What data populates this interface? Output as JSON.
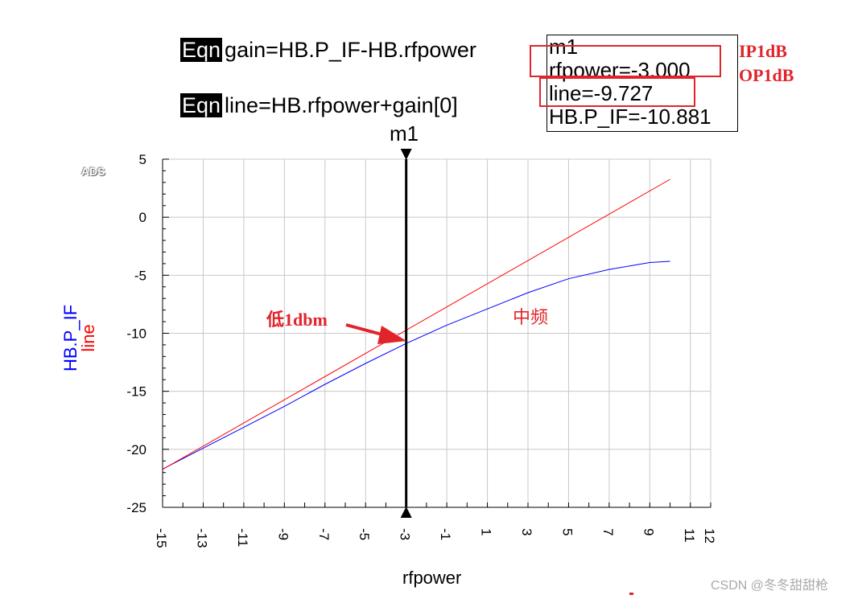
{
  "equations": [
    {
      "tag": "Eqn",
      "text": "gain=HB.P_IF-HB.rfpower"
    },
    {
      "tag": "Eqn",
      "text": "line=HB.rfpower+gain[0]"
    }
  ],
  "marker": {
    "name": "m1",
    "lines": [
      "m1",
      "rfpower=-3.000",
      "line=-9.727",
      "HB.P_IF=-10.881"
    ]
  },
  "annotations": {
    "ip1db": "IP1dB",
    "op1db": "OP1dB",
    "low": "低1dbm",
    "mid": "中频"
  },
  "ads_label": "ADS",
  "watermark": "CSDN @冬冬甜甜枪",
  "colors": {
    "blue": "#0000ff",
    "red": "#ff0000",
    "annotation": "#e0242b",
    "grid": "#c8c8c8"
  },
  "chart_data": {
    "type": "line",
    "title": "",
    "xlabel": "rfpower",
    "ylabel": [
      "HB.P_IF",
      "line"
    ],
    "xlim": [
      -15,
      12
    ],
    "ylim": [
      -25,
      5
    ],
    "xticks": [
      -15,
      -13,
      -11,
      -9,
      -7,
      -5,
      -3,
      -1,
      1,
      3,
      5,
      7,
      9,
      11,
      12
    ],
    "yticks": [
      5,
      0,
      -5,
      -10,
      -15,
      -20,
      -25
    ],
    "grid": true,
    "marker_x": -3,
    "series": [
      {
        "name": "HB.P_IF",
        "color": "#0000ff",
        "x": [
          -15,
          -13,
          -11,
          -9,
          -7,
          -5,
          -3,
          -1,
          1,
          3,
          5,
          7,
          9,
          10
        ],
        "y": [
          -21.7,
          -19.9,
          -18.1,
          -16.3,
          -14.4,
          -12.6,
          -10.88,
          -9.3,
          -7.9,
          -6.5,
          -5.3,
          -4.5,
          -3.9,
          -3.8
        ]
      },
      {
        "name": "line",
        "color": "#ff0000",
        "x": [
          -15,
          10
        ],
        "y": [
          -21.73,
          3.27
        ]
      }
    ]
  }
}
